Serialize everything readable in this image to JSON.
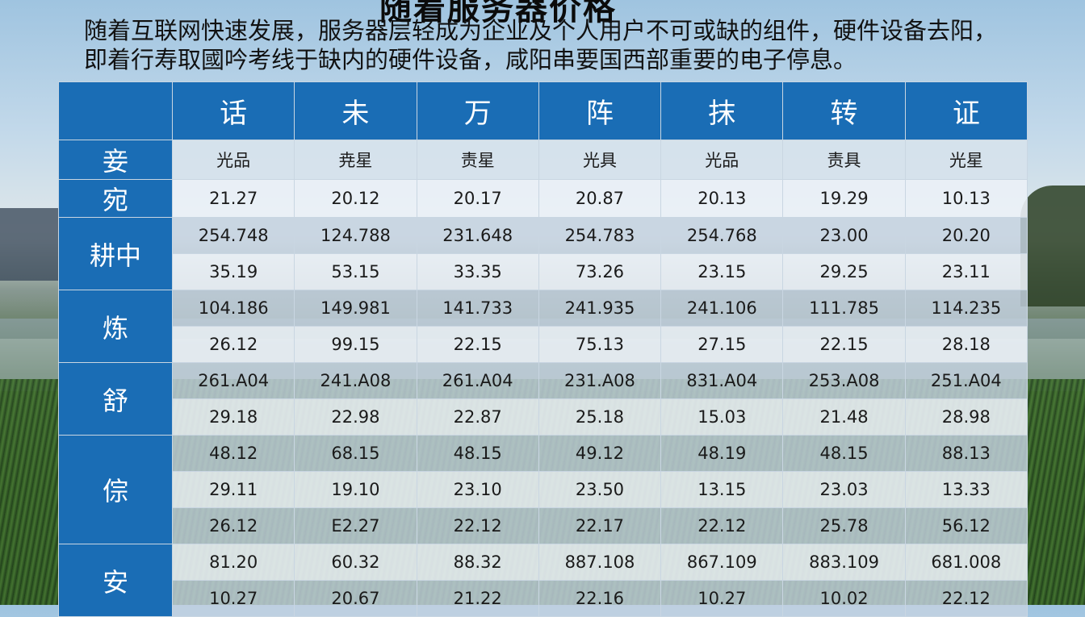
{
  "title_fragment": "随着服务器价格",
  "subtitle": "随着互联网快速发展，服务器层轻成为企业及个人用户不可或缺的组件，硬件设备去阳，即着行寿取國吟考线于缺内的硬件设备，咸阳串要国西部重要的电子停息。",
  "table": {
    "columns": [
      "话",
      "未",
      "万",
      "阵",
      "抹",
      "转",
      "证"
    ],
    "subheader": {
      "label": "妾",
      "values": [
        "光品",
        "尭星",
        "责星",
        "光具",
        "光品",
        "责具",
        "光星"
      ]
    },
    "groups": [
      {
        "label": "宛",
        "rows": [
          [
            "21.27",
            "20.12",
            "20.17",
            "20.87",
            "20.13",
            "19.29",
            "10.13"
          ]
        ]
      },
      {
        "label": "耕中",
        "rows": [
          [
            "254.748",
            "124.788",
            "231.648",
            "254.783",
            "254.768",
            "23.00",
            "20.20"
          ],
          [
            "35.19",
            "53.15",
            "33.35",
            "73.26",
            "23.15",
            "29.25",
            "23.11"
          ]
        ]
      },
      {
        "label": "炼",
        "rows": [
          [
            "104.186",
            "149.981",
            "141.733",
            "241.935",
            "241.106",
            "111.785",
            "114.235"
          ],
          [
            "26.12",
            "99.15",
            "22.15",
            "75.13",
            "27.15",
            "22.15",
            "28.18"
          ]
        ]
      },
      {
        "label": "舒",
        "rows": [
          [
            "261.A04",
            "241.A08",
            "261.A04",
            "231.A08",
            "831.A04",
            "253.A08",
            "251.A04"
          ],
          [
            "29.18",
            "22.98",
            "22.87",
            "25.18",
            "15.03",
            "21.48",
            "28.98"
          ]
        ]
      },
      {
        "label": "倧",
        "rows": [
          [
            "48.12",
            "68.15",
            "48.15",
            "49.12",
            "48.19",
            "48.15",
            "88.13"
          ],
          [
            "29.11",
            "19.10",
            "23.10",
            "23.50",
            "13.15",
            "23.03",
            "13.33"
          ],
          [
            "26.12",
            "E2.27",
            "22.12",
            "22.17",
            "22.12",
            "25.78",
            "56.12"
          ]
        ]
      },
      {
        "label": "安",
        "rows": [
          [
            "81.20",
            "60.32",
            "88.32",
            "887.108",
            "867.109",
            "883.109",
            "681.008"
          ],
          [
            "10.27",
            "20.67",
            "21.22",
            "22.16",
            "10.27",
            "10.02",
            "22.12"
          ]
        ]
      }
    ]
  }
}
